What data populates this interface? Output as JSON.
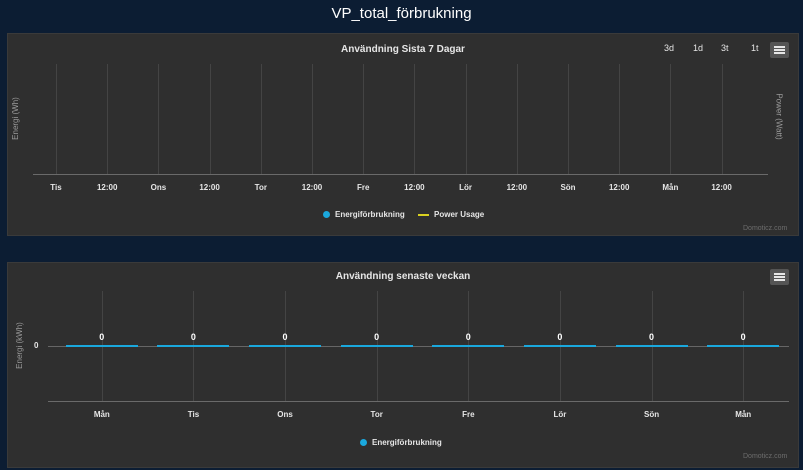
{
  "page": {
    "title": "VP_total_förbrukning"
  },
  "panel1": {
    "title": "Användning Sista 7 Dagar",
    "zoom_buttons": [
      "3d",
      "1d",
      "3t",
      "1t"
    ],
    "y_left_label": "Energi (Wh)",
    "y_right_label": "Power (Watt)",
    "x_ticks": [
      "Tis",
      "12:00",
      "Ons",
      "12:00",
      "Tor",
      "12:00",
      "Fre",
      "12:00",
      "Lör",
      "12:00",
      "Sön",
      "12:00",
      "Mån",
      "12:00"
    ],
    "legend": [
      {
        "label": "Energiförbrukning",
        "color": "#1aa8dd",
        "shape": "dot"
      },
      {
        "label": "Power Usage",
        "color": "#d8d020",
        "shape": "dash"
      }
    ],
    "credit": "Domoticz.com"
  },
  "panel2": {
    "title": "Användning senaste veckan",
    "y_label": "Energi (kWh)",
    "y_tick": "0",
    "legend": [
      {
        "label": "Energiförbrukning",
        "color": "#1aa8dd",
        "shape": "dot"
      }
    ],
    "credit": "Domoticz.com"
  },
  "chart_data": [
    {
      "type": "line",
      "title": "Användning Sista 7 Dagar",
      "xlabel": "",
      "ylabel": "Energi (Wh)",
      "y2label": "Power (Watt)",
      "x_ticks": [
        "Tis",
        "12:00",
        "Ons",
        "12:00",
        "Tor",
        "12:00",
        "Fre",
        "12:00",
        "Lör",
        "12:00",
        "Sön",
        "12:00",
        "Mån",
        "12:00"
      ],
      "series": [
        {
          "name": "Energiförbrukning",
          "values": []
        },
        {
          "name": "Power Usage",
          "values": []
        }
      ],
      "grid": true,
      "legend": "bottom"
    },
    {
      "type": "bar",
      "title": "Användning senaste veckan",
      "categories": [
        "Mån",
        "Tis",
        "Ons",
        "Tor",
        "Fre",
        "Lör",
        "Sön",
        "Mån"
      ],
      "series": [
        {
          "name": "Energiförbrukning",
          "values": [
            0,
            0,
            0,
            0,
            0,
            0,
            0,
            0
          ]
        }
      ],
      "ylabel": "Energi (kWh)",
      "y_ticks": [
        "0"
      ],
      "grid": true,
      "legend": "bottom"
    }
  ]
}
